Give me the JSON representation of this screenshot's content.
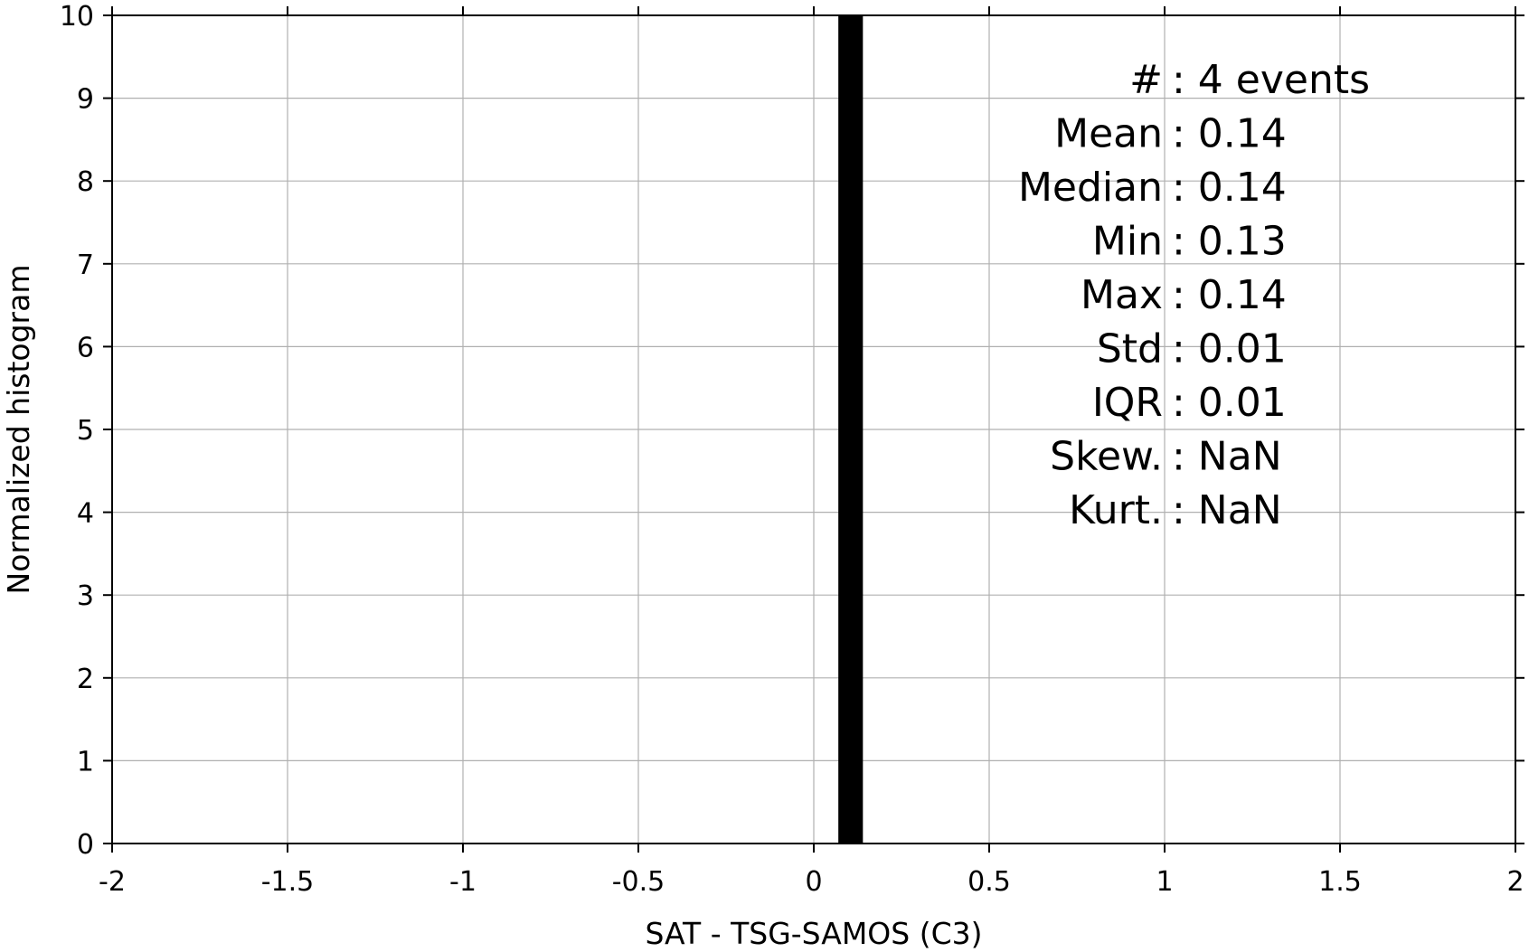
{
  "chart_data": {
    "type": "bar",
    "xlabel": "SAT - TSG-SAMOS (C3)",
    "ylabel": "Normalized histogram",
    "xlim": [
      -2,
      2
    ],
    "ylim": [
      0,
      10
    ],
    "x_ticks": [
      -2,
      -1.5,
      -1,
      -0.5,
      0,
      0.5,
      1,
      1.5,
      2
    ],
    "x_tick_labels": [
      "-2",
      "-1.5",
      "-1",
      "-0.5",
      "0",
      "0.5",
      "1",
      "1.5",
      "2"
    ],
    "y_ticks": [
      0,
      1,
      2,
      3,
      4,
      5,
      6,
      7,
      8,
      9,
      10
    ],
    "y_tick_labels": [
      "0",
      "1",
      "2",
      "3",
      "4",
      "5",
      "6",
      "7",
      "8",
      "9",
      "10"
    ],
    "grid": true,
    "bars": [
      {
        "x_start": 0.07,
        "x_end": 0.14,
        "value": 10
      }
    ],
    "bar_color": "#000000",
    "stats": [
      {
        "label": "#  ",
        "value": "4 events"
      },
      {
        "label": "Mean",
        "value": "0.14"
      },
      {
        "label": "Median",
        "value": "0.14"
      },
      {
        "label": "Min",
        "value": "0.13"
      },
      {
        "label": "Max",
        "value": "0.14"
      },
      {
        "label": "Std",
        "value": "0.01"
      },
      {
        "label": "IQR",
        "value": "0.01"
      },
      {
        "label": "Skew.",
        "value": "NaN"
      },
      {
        "label": "Kurt.",
        "value": "NaN"
      }
    ]
  }
}
